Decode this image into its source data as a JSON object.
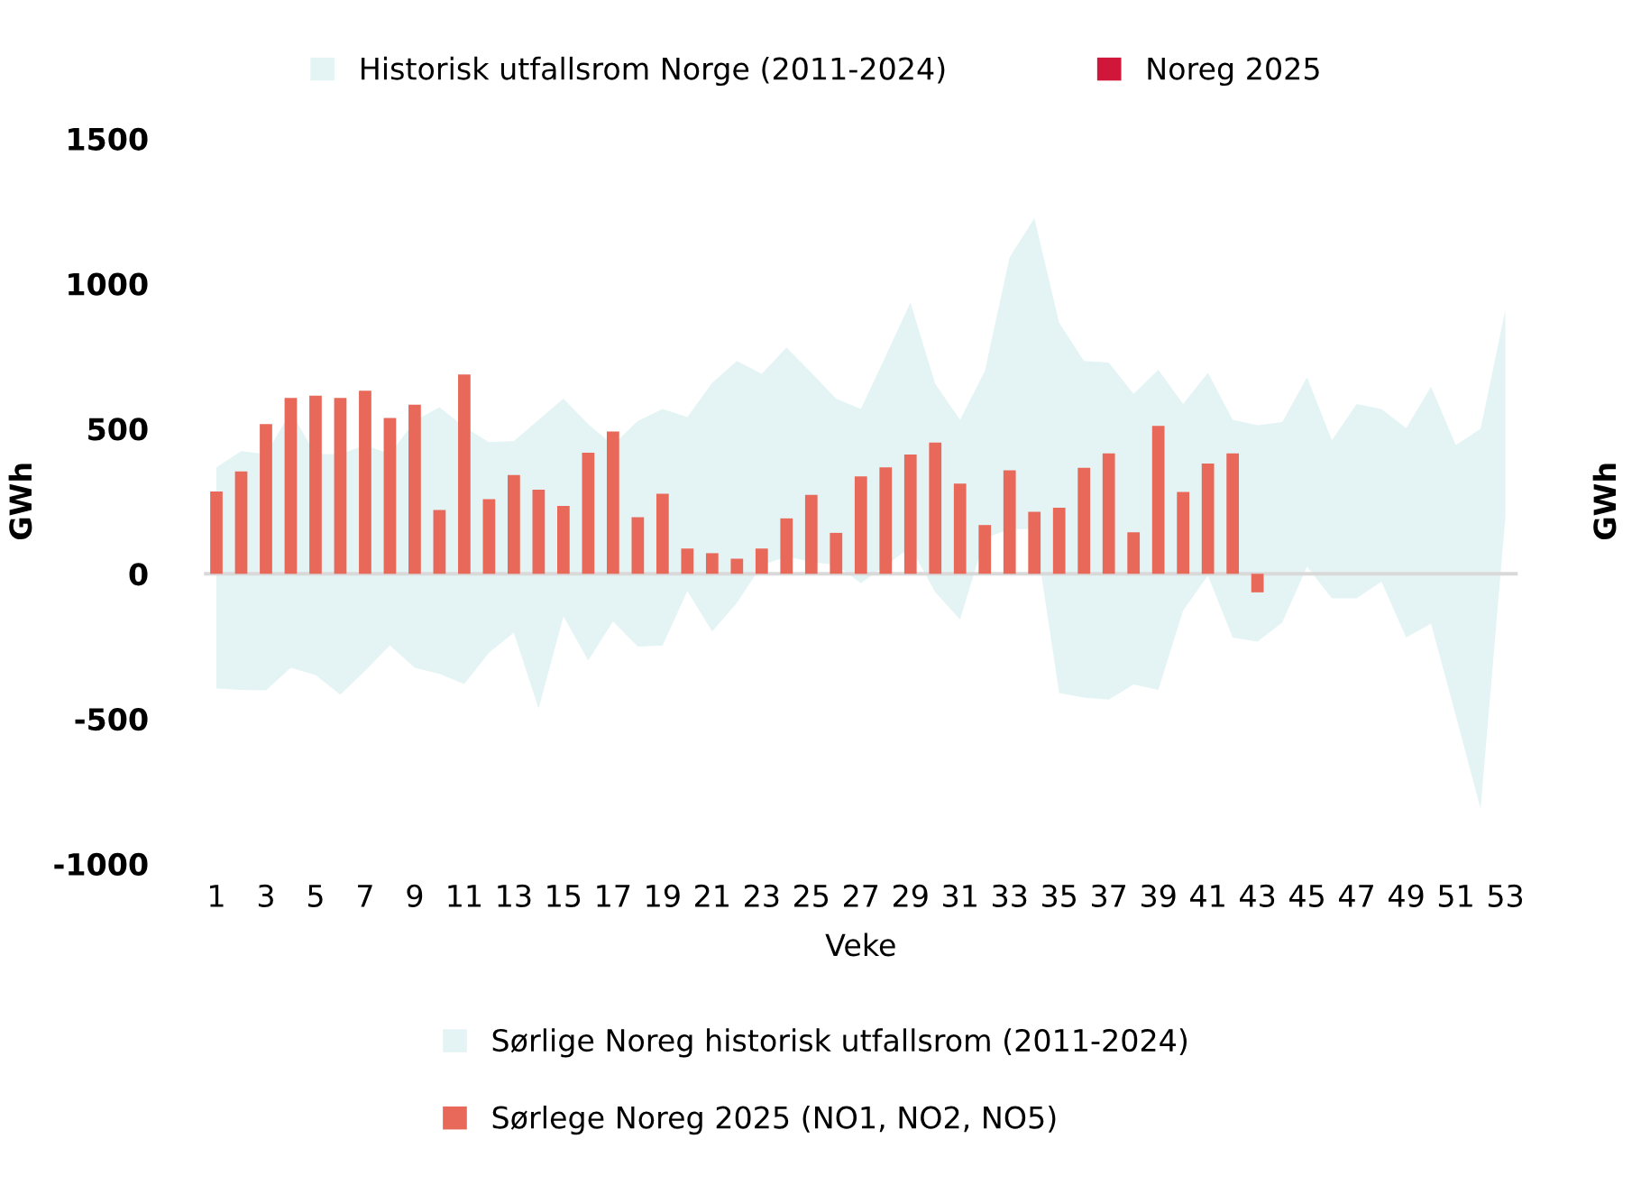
{
  "chart_data": {
    "type": "bar",
    "categories": [
      "1",
      null,
      "3",
      null,
      "5",
      null,
      "7",
      null,
      "9",
      null,
      "11",
      null,
      "13",
      null,
      "15",
      null,
      "17",
      null,
      "19",
      null,
      "21",
      null,
      "23",
      null,
      "25",
      null,
      "27",
      null,
      "29",
      null,
      "31",
      null,
      "33",
      null,
      "35",
      null,
      "37",
      null,
      "39",
      null,
      "41",
      null,
      "43",
      null,
      "45",
      null,
      "47",
      null,
      "49",
      null,
      "51",
      null,
      "53"
    ],
    "xlabel": "Veke",
    "ylabel": "GWh",
    "y2label": "GWh",
    "ylim": [
      -1000,
      1500
    ],
    "yticks": [
      -1000,
      -500,
      0,
      500,
      1000,
      1500
    ],
    "grid": false,
    "legend": "bottom",
    "ref_lines": [
      {
        "axis": "y",
        "value": 0,
        "color": "#d9d9d9"
      }
    ],
    "series": [
      {
        "name": "Historisk utfallsrom Norge (2011-2024)",
        "type": "area",
        "color": "#e4f4f4",
        "values": [
          null,
          null,
          null,
          null,
          null,
          null,
          null,
          null,
          null,
          null,
          null,
          null,
          null,
          null,
          null,
          null,
          null,
          null,
          null,
          null,
          null,
          null,
          null,
          null,
          null,
          null,
          null,
          null,
          null,
          null,
          null,
          null,
          null,
          null,
          null,
          null,
          null,
          null,
          null,
          null,
          null,
          null,
          null,
          null,
          null,
          null,
          null,
          null,
          null,
          null,
          null,
          null,
          null
        ]
      },
      {
        "name": "Noreg 2025",
        "color": "#d0163a",
        "values": [
          null,
          null,
          null,
          null,
          null,
          null,
          null,
          null,
          null,
          null,
          null,
          null,
          null,
          null,
          null,
          null,
          null,
          null,
          null,
          null,
          null,
          null,
          null,
          null,
          null,
          null,
          null,
          null,
          null,
          null,
          null,
          null,
          null,
          null,
          null,
          null,
          null,
          null,
          null,
          null,
          null,
          null,
          null,
          null,
          null,
          null,
          null,
          null,
          null,
          null,
          null,
          null,
          null
        ]
      },
      {
        "name": "Sørlige Noreg historisk utfallsrom (2011-2024)",
        "type": "area",
        "color": "#e4f4f4",
        "values": [
          null,
          null,
          null,
          null,
          null,
          null,
          null,
          null,
          null,
          null,
          null,
          null,
          null,
          null,
          null,
          null,
          null,
          null,
          null,
          null,
          null,
          null,
          null,
          null,
          null,
          null,
          null,
          null,
          null,
          null,
          null,
          null,
          null,
          null,
          null,
          null,
          null,
          null,
          null,
          null,
          null,
          null,
          null,
          null,
          null,
          null,
          null,
          null,
          null,
          null,
          null,
          null,
          null
        ],
        "lower": [
          -396,
          -400,
          -402,
          -324,
          -349,
          -417,
          -334,
          -247,
          -324,
          -345,
          -380,
          -272,
          -203,
          -465,
          -147,
          -299,
          -164,
          -251,
          -247,
          -60,
          -199,
          -100,
          29,
          60,
          40,
          30,
          -33,
          29,
          91,
          -64,
          -158,
          122,
          154,
          154,
          -411,
          -427,
          -434,
          -382,
          -400,
          -127,
          -6,
          -220,
          -234,
          -168,
          25,
          -85,
          -85,
          -27,
          -220,
          -172,
          -489,
          -811,
          195
        ],
        "upper": [
          367,
          423,
          413,
          558,
          413,
          413,
          444,
          413,
          527,
          574,
          506,
          454,
          458,
          531,
          604,
          516,
          444,
          527,
          568,
          540,
          658,
          734,
          689,
          780,
          693,
          604,
          568,
          751,
          935,
          655,
          531,
          699,
          1091,
          1226,
          865,
          734,
          728,
          620,
          703,
          585,
          693,
          531,
          512,
          523,
          678,
          460,
          585,
          568,
          502,
          645,
          444,
          500,
          910
        ]
      },
      {
        "name": "Sørlege Noreg 2025 (NO1, NO2, NO5)",
        "color": "#e8695a",
        "values": [
          284,
          353,
          516,
          606,
          614,
          606,
          631,
          537,
          583,
          220,
          687,
          257,
          340,
          290,
          234,
          417,
          490,
          195,
          276,
          87,
          71,
          52,
          87,
          191,
          272,
          141,
          336,
          367,
          411,
          452,
          311,
          168,
          357,
          214,
          228,
          365,
          415,
          143,
          510,
          282,
          380,
          415,
          -64,
          null,
          null,
          null,
          null,
          null,
          null,
          null,
          null,
          null,
          null
        ]
      }
    ]
  }
}
